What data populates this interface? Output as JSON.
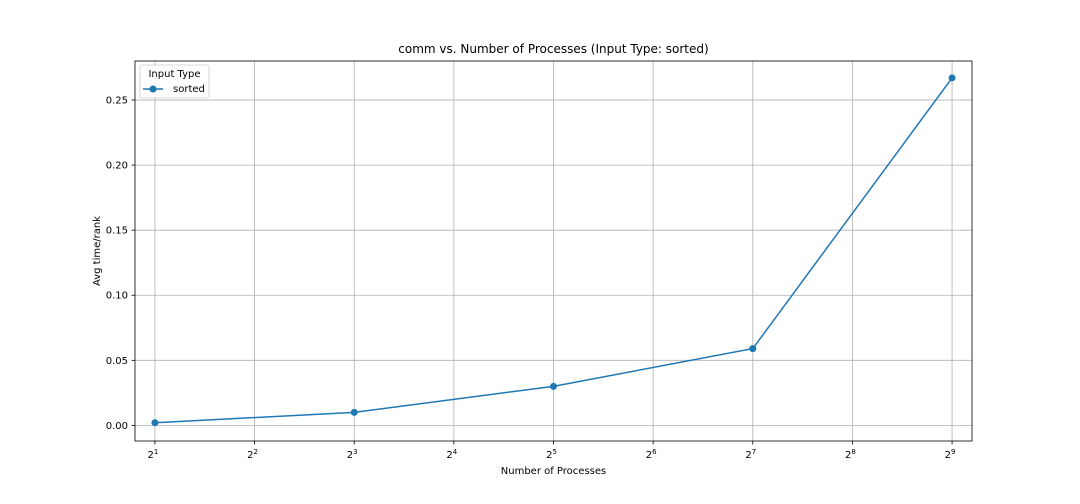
{
  "chart_data": {
    "type": "line",
    "title": "comm vs. Number of Processes (Input Type: sorted)",
    "xlabel": "Number of Processes",
    "ylabel": "Avg time/rank",
    "x_scale": "log2",
    "x_tick_exponents": [
      1,
      2,
      3,
      4,
      5,
      6,
      7,
      8,
      9
    ],
    "x_tick_base": "2",
    "y_ticks": [
      "0.00",
      "0.05",
      "0.10",
      "0.15",
      "0.20",
      "0.25"
    ],
    "ylim": [
      -0.012,
      0.28
    ],
    "grid": true,
    "legend": {
      "title": "Input Type",
      "placement": "top-left"
    },
    "series": [
      {
        "name": "sorted",
        "color": "#1f77b4",
        "x": [
          2,
          8,
          32,
          128,
          512
        ],
        "y": [
          0.002,
          0.01,
          0.03,
          0.059,
          0.267
        ]
      }
    ]
  }
}
